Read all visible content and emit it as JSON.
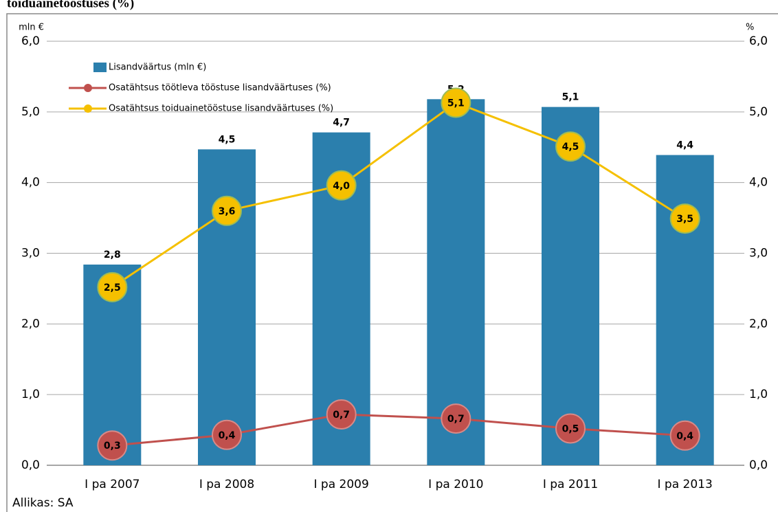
{
  "chart_data": {
    "type": "bar",
    "title": "toiduainetööstuses (%)",
    "y_label": "mln €",
    "y2_label": "%",
    "source": "Allikas: SA",
    "categories": [
      "I pa 2007",
      "I pa 2008",
      "I pa 2009",
      "I pa 2010",
      "I pa 2011",
      "I pa 2013"
    ],
    "series": [
      {
        "name": "Lisandväärtus (mln €)",
        "type": "bar",
        "color": "#2b7fad",
        "values": [
          2.84,
          4.47,
          4.71,
          5.18,
          5.07,
          4.39
        ],
        "value_labels": [
          "2,8",
          "4,5",
          "4,7",
          "5,2",
          "5,1",
          "4,4"
        ]
      },
      {
        "name": "Osatähtsus töötleva tööstuse lisandväärtuses (%)",
        "type": "line",
        "axis": "y2",
        "color": "#c0504d",
        "values": [
          0.28,
          0.43,
          0.72,
          0.66,
          0.52,
          0.42
        ],
        "value_labels": [
          "0,3",
          "0,4",
          "0,7",
          "0,7",
          "0,5",
          "0,4"
        ]
      },
      {
        "name": "Osatähtsus toiduainetööstuse lisandväärtuses (%)",
        "type": "line",
        "axis": "y2",
        "color": "#f5c000",
        "values": [
          2.52,
          3.6,
          3.96,
          5.13,
          4.51,
          3.49
        ],
        "value_labels": [
          "2,5",
          "3,6",
          "4,0",
          "5,1",
          "4,5",
          "3,5"
        ]
      }
    ],
    "ylim": [
      0,
      6
    ],
    "yticks": [
      {
        "value": 0,
        "label": "0,0"
      },
      {
        "value": 1,
        "label": "1,0"
      },
      {
        "value": 2,
        "label": "2,0"
      },
      {
        "value": 3,
        "label": "3,0"
      },
      {
        "value": 4,
        "label": "4,0"
      },
      {
        "value": 5,
        "label": "5,0"
      },
      {
        "value": 6,
        "label": "6,0"
      }
    ],
    "y2lim": [
      0,
      6
    ],
    "y2ticks": [
      {
        "value": 0,
        "label": "0,0"
      },
      {
        "value": 1,
        "label": "1,0"
      },
      {
        "value": 2,
        "label": "2,0"
      },
      {
        "value": 3,
        "label": "3,0"
      },
      {
        "value": 4,
        "label": "4,0"
      },
      {
        "value": 5,
        "label": "5,0"
      },
      {
        "value": 6,
        "label": "6,0"
      }
    ],
    "grid": true
  }
}
